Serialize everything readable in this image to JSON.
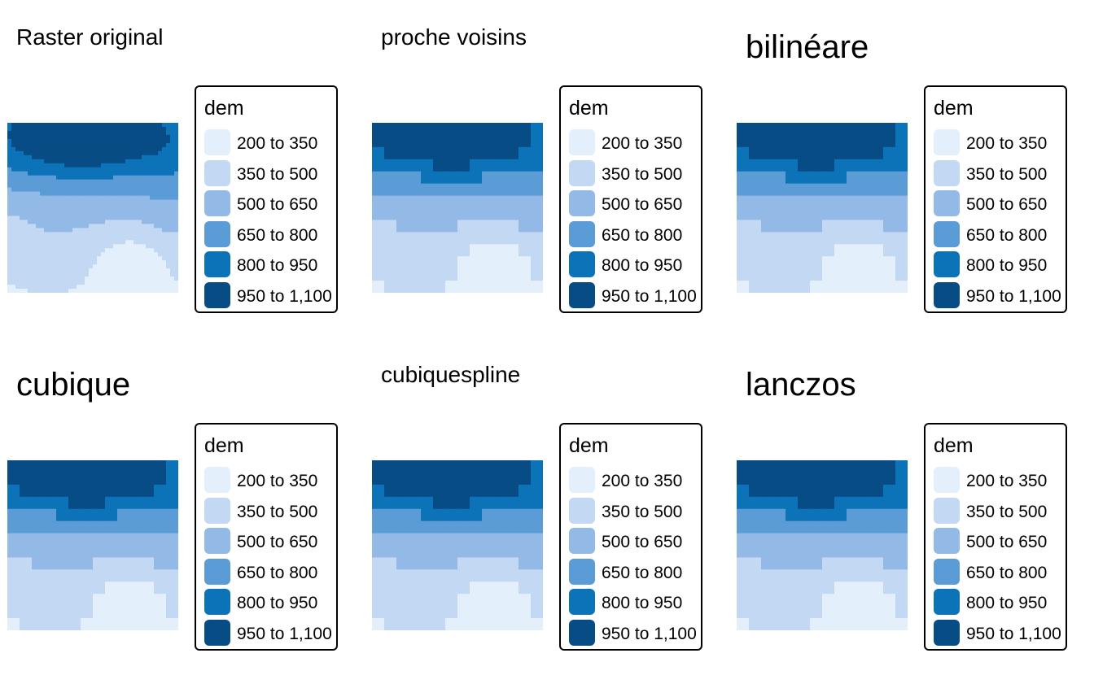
{
  "legend": {
    "title": "dem",
    "classes": [
      {
        "label": "200 to 350",
        "color": "#e3effb"
      },
      {
        "label": "350 to 500",
        "color": "#c3d8f2"
      },
      {
        "label": "500 to 650",
        "color": "#93bae6"
      },
      {
        "label": "650 to 800",
        "color": "#5b9bd6"
      },
      {
        "label": "800 to 950",
        "color": "#0c73b8"
      },
      {
        "label": "950 to 1,100",
        "color": "#084c85"
      }
    ]
  },
  "panels": [
    {
      "id": "original",
      "title": "Raster original",
      "title_size": "small"
    },
    {
      "id": "near",
      "title": "proche voisins",
      "title_size": "small"
    },
    {
      "id": "bilinear",
      "title": "bilinéare",
      "title_size": "large"
    },
    {
      "id": "cubic",
      "title": "cubique",
      "title_size": "large"
    },
    {
      "id": "cubicspline",
      "title": "cubiquespline",
      "title_size": "small"
    },
    {
      "id": "lanczos",
      "title": "lanczos",
      "title_size": "large"
    }
  ]
}
